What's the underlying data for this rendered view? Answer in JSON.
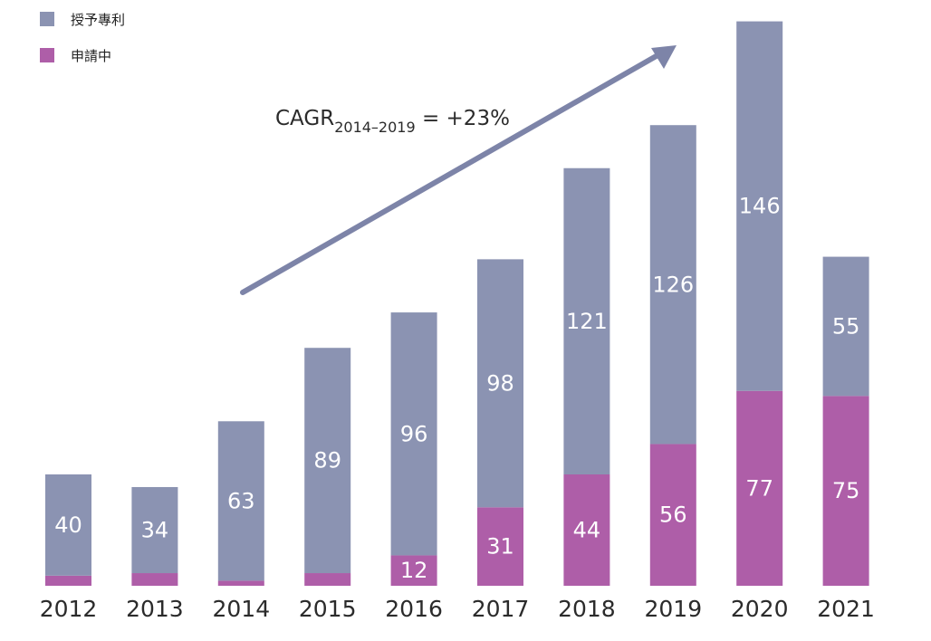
{
  "colors": {
    "granted": "#8b93b2",
    "pending": "#ae5ea8",
    "arrow": "#7d84a8"
  },
  "legend": {
    "granted_label": "授予專利",
    "pending_label": "申請中"
  },
  "annotation": {
    "cagr_main": "CAGR",
    "cagr_sub": "2014–2019",
    "cagr_value": " = +23%"
  },
  "chart_data": {
    "type": "bar",
    "stacked": true,
    "categories": [
      "2012",
      "2013",
      "2014",
      "2015",
      "2016",
      "2017",
      "2018",
      "2019",
      "2020",
      "2021"
    ],
    "series": [
      {
        "name": "申請中",
        "values": [
          4,
          5,
          2,
          5,
          12,
          31,
          44,
          56,
          77,
          75
        ],
        "labels": [
          "",
          "",
          "",
          "",
          "12",
          "31",
          "44",
          "56",
          "77",
          "75"
        ]
      },
      {
        "name": "授予專利",
        "values": [
          40,
          34,
          63,
          89,
          96,
          98,
          121,
          126,
          146,
          55
        ],
        "labels": [
          "40",
          "34",
          "63",
          "89",
          "96",
          "98",
          "121",
          "126",
          "146",
          "55"
        ]
      }
    ],
    "ylim": [
      0,
      225
    ],
    "legend_position": "top-left"
  }
}
